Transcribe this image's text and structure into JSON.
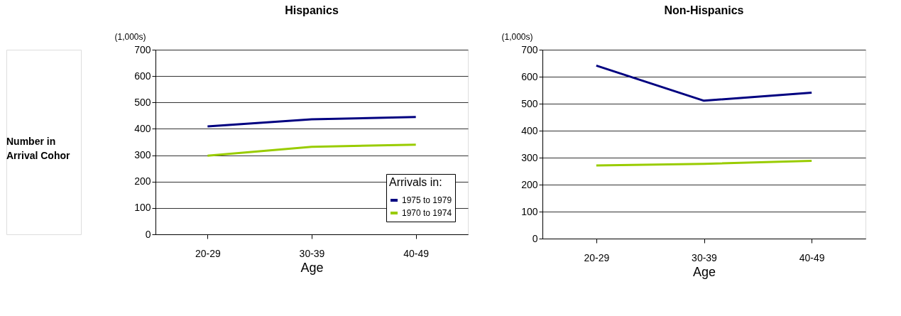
{
  "chart_data": [
    {
      "type": "line",
      "title": "Hispanics",
      "ylabel": "(1,000s)",
      "xlabel": "Age",
      "categories": [
        "20-29",
        "30-39",
        "40-49"
      ],
      "series": [
        {
          "name": "1975 to 1979",
          "color": "#000080",
          "values": [
            409,
            436,
            445
          ]
        },
        {
          "name": "1970 to 1974",
          "color": "#99cc00",
          "values": [
            298,
            332,
            340
          ]
        }
      ],
      "legend_title": "Arrivals in:",
      "legend": "bottom right",
      "ylim": [
        0,
        700
      ],
      "yticks": [
        0,
        100,
        200,
        300,
        400,
        500,
        600,
        700
      ],
      "grid": "y",
      "marker": "none",
      "line_style": "solid",
      "annotations": [
        "Number in Arrival Cohor"
      ]
    },
    {
      "type": "line",
      "title": "Non-Hispanics",
      "ylabel": "(1,000s)",
      "xlabel": "Age",
      "categories": [
        "20-29",
        "30-39",
        "40-49"
      ],
      "series": [
        {
          "color": "#000080",
          "values": [
            641,
            511,
            541
          ]
        },
        {
          "color": "#99cc00",
          "values": [
            271,
            277,
            288
          ]
        }
      ],
      "legend": false,
      "ylim": [
        0,
        700
      ],
      "yticks": [
        0,
        100,
        200,
        300,
        400,
        500,
        600,
        700
      ],
      "grid": "y",
      "marker": "none",
      "line_style": "solid"
    }
  ]
}
